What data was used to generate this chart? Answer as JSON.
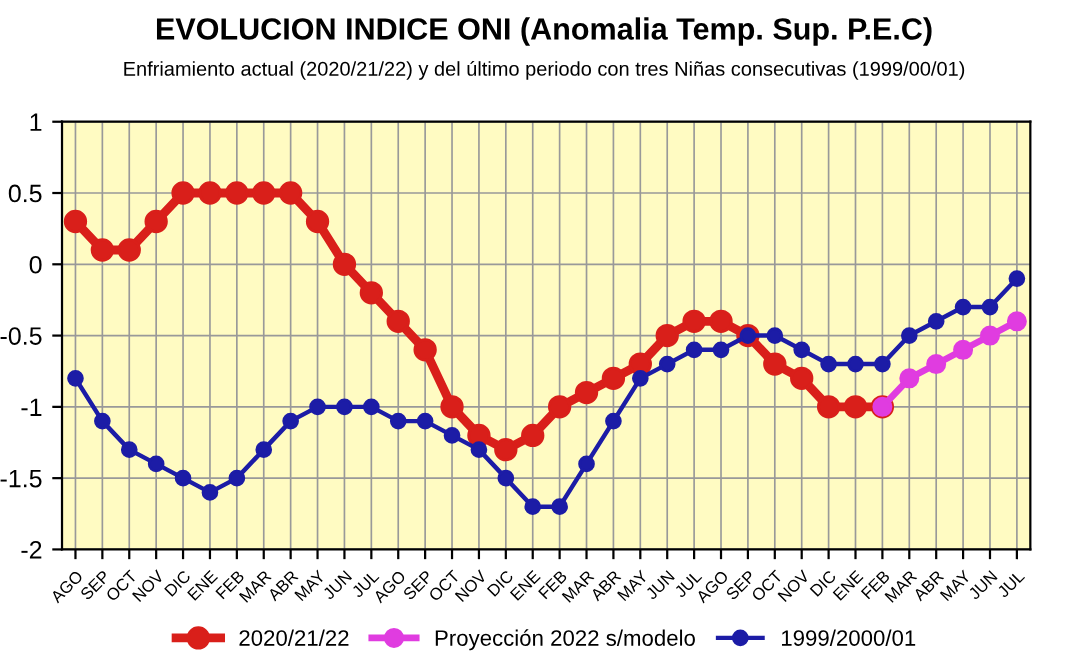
{
  "chart_data": {
    "type": "line",
    "title": "EVOLUCION INDICE ONI (Anomalia Temp. Sup. P.E.C)",
    "subtitle": "Enfriamiento actual (2020/21/22) y del último periodo con tres Niñas consecutivas (1999/00/01)",
    "categories": [
      "AGO",
      "SEP",
      "OCT",
      "NOV",
      "DIC",
      "ENE",
      "FEB",
      "MAR",
      "ABR",
      "MAY",
      "JUN",
      "JUL",
      "AGO",
      "SEP",
      "OCT",
      "NOV",
      "DIC",
      "ENE",
      "FEB",
      "MAR",
      "ABR",
      "MAY",
      "JUN",
      "JUL",
      "AGO",
      "SEP",
      "OCT",
      "NOV",
      "DIC",
      "ENE",
      "FEB",
      "MAR",
      "ABR",
      "MAY",
      "JUN",
      "JUL"
    ],
    "series": [
      {
        "name": "2020/21/22",
        "color": "#d91f1a",
        "values": [
          0.3,
          0.1,
          0.1,
          0.3,
          0.5,
          0.5,
          0.5,
          0.5,
          0.5,
          0.3,
          0,
          -0.2,
          -0.4,
          -0.6,
          -1.0,
          -1.2,
          -1.3,
          -1.2,
          -1.0,
          -0.9,
          -0.8,
          -0.7,
          -0.5,
          -0.4,
          -0.4,
          -0.5,
          -0.7,
          -0.8,
          -1.0,
          -1.0,
          -1.0,
          null,
          null,
          null,
          null,
          null
        ]
      },
      {
        "name": "Proyección 2022 s/modelo",
        "color": "#e03ce0",
        "values": [
          null,
          null,
          null,
          null,
          null,
          null,
          null,
          null,
          null,
          null,
          null,
          null,
          null,
          null,
          null,
          null,
          null,
          null,
          null,
          null,
          null,
          null,
          null,
          null,
          null,
          null,
          null,
          null,
          null,
          null,
          -1.0,
          -0.8,
          -0.7,
          -0.6,
          -0.5,
          -0.4
        ]
      },
      {
        "name": "1999/2000/01",
        "color": "#1c1ca6",
        "values": [
          -0.8,
          -1.1,
          -1.3,
          -1.4,
          -1.5,
          -1.6,
          -1.5,
          -1.3,
          -1.1,
          -1.0,
          -1.0,
          -1.0,
          -1.1,
          -1.1,
          -1.2,
          -1.3,
          -1.5,
          -1.7,
          -1.7,
          -1.4,
          -1.1,
          -0.8,
          -0.7,
          -0.6,
          -0.6,
          -0.5,
          -0.5,
          -0.6,
          -0.7,
          -0.7,
          -0.7,
          -0.5,
          -0.4,
          -0.3,
          -0.3,
          -0.1
        ]
      }
    ],
    "ylim": [
      -2,
      1
    ],
    "yticks": [
      -2,
      -1.5,
      -1,
      -0.5,
      0,
      0.5,
      1
    ],
    "grid": true,
    "legend": "bottom",
    "marker": "circle",
    "line_style": "solid"
  }
}
